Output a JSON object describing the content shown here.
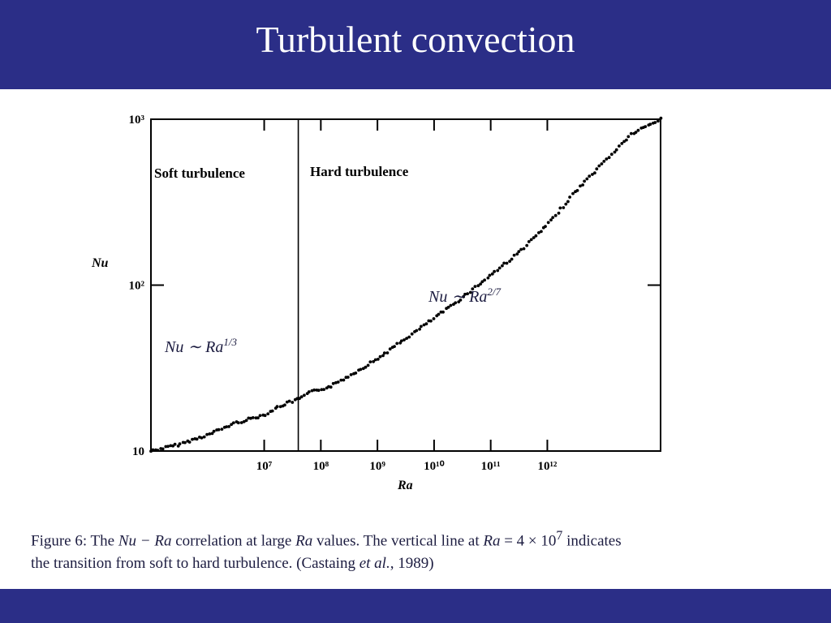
{
  "header": {
    "title": "Turbulent convection"
  },
  "colors": {
    "header_bar": "#2b2e87",
    "title_text": "#ffffff",
    "caption_text": "#1c1c40",
    "markers": "#000000"
  },
  "chart_data": {
    "type": "scatter",
    "xlabel": "Ra",
    "ylabel": "Nu",
    "x_scale": "log",
    "y_scale": "log",
    "xlim": [
      100000,
      100000000000000.0
    ],
    "ylim": [
      10,
      1000
    ],
    "x_ticks": [
      {
        "value": 10000000.0,
        "label": "10⁷"
      },
      {
        "value": 100000000.0,
        "label": "10⁸"
      },
      {
        "value": 1000000000.0,
        "label": "10⁹"
      },
      {
        "value": 10000000000.0,
        "label": "10¹⁰"
      },
      {
        "value": 100000000000.0,
        "label": "10¹¹"
      },
      {
        "value": 1000000000000.0,
        "label": "10¹²"
      }
    ],
    "y_ticks": [
      {
        "value": 10,
        "label": "10"
      },
      {
        "value": 100,
        "label": "10²"
      },
      {
        "value": 1000,
        "label": "10³"
      }
    ],
    "vertical_line": {
      "x": 40000000
    },
    "regions": [
      {
        "label": "Soft turbulence"
      },
      {
        "label": "Hard turbulence"
      }
    ],
    "annotations": {
      "soft": {
        "base": "Nu ∼ Ra",
        "exponent": "1/3"
      },
      "hard": {
        "base": "Nu ∼ Ra",
        "exponent": "2/7"
      }
    },
    "series": [
      {
        "points": [
          [
            100000,
            10
          ],
          [
            300000,
            10.9
          ],
          [
            1000000,
            12.5
          ],
          [
            3000000,
            14.7
          ],
          [
            10000000,
            16.5
          ],
          [
            20000000,
            18.8
          ],
          [
            40000000,
            20.5
          ],
          [
            70000000,
            22.8
          ],
          [
            150000000,
            24.5
          ],
          [
            400000000,
            29.8
          ],
          [
            1000000000,
            36
          ],
          [
            3000000000,
            47
          ],
          [
            10000000000,
            63
          ],
          [
            30000000000,
            83
          ],
          [
            100000000000,
            115
          ],
          [
            300000000000,
            155
          ],
          [
            1000000000000,
            230
          ],
          [
            3000000000000,
            360
          ],
          [
            10000000000000,
            550
          ],
          [
            30000000000000,
            810
          ],
          [
            100000000000000,
            1000
          ]
        ]
      }
    ]
  },
  "caption": {
    "t1": "Figure 6: The ",
    "m1": "Nu − Ra",
    "t2": " correlation at large ",
    "m2": "Ra",
    "t3": " values. The vertical line at ",
    "m3": "Ra",
    "t4": " = 4 × 10",
    "sup": "7",
    "t5": " indicates",
    "line2": "the transition from soft to hard turbulence. (Castaing ",
    "etal": "et al.",
    "t6": ", 1989)"
  }
}
